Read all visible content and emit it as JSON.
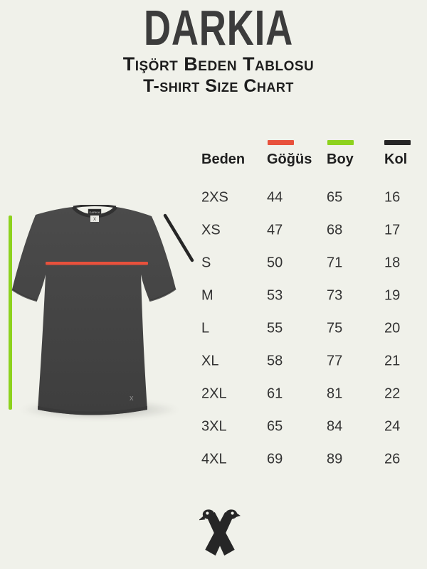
{
  "page": {
    "background": "#f0f1ea"
  },
  "header": {
    "brand": "DARKIA",
    "subtitle_tr": "Tişört Beden Tablosu",
    "subtitle_en": "T-shirt Size Chart"
  },
  "legend": {
    "chest_color": "#e8513c",
    "length_color": "#8dd21d",
    "sleeve_color": "#262626"
  },
  "chart_data": {
    "type": "table",
    "title": "Tişört Beden Tablosu / T-shirt Size Chart",
    "columns": [
      "Beden",
      "Göğüs",
      "Boy",
      "Kol"
    ],
    "column_measure_colors": {
      "Göğüs": "#e8513c",
      "Boy": "#8dd21d",
      "Kol": "#262626"
    },
    "rows": [
      [
        "2XS",
        44,
        65,
        16
      ],
      [
        "XS",
        47,
        68,
        17
      ],
      [
        "S",
        50,
        71,
        18
      ],
      [
        "M",
        53,
        73,
        19
      ],
      [
        "L",
        55,
        75,
        20
      ],
      [
        "XL",
        58,
        77,
        21
      ],
      [
        "2XL",
        61,
        81,
        22
      ],
      [
        "3XL",
        65,
        84,
        24
      ],
      [
        "4XL",
        69,
        89,
        26
      ]
    ]
  },
  "tshirt": {
    "shirt_color": "#454545",
    "neck_label": "DARKIA",
    "size_tag": "X",
    "hem_logo": "x"
  }
}
